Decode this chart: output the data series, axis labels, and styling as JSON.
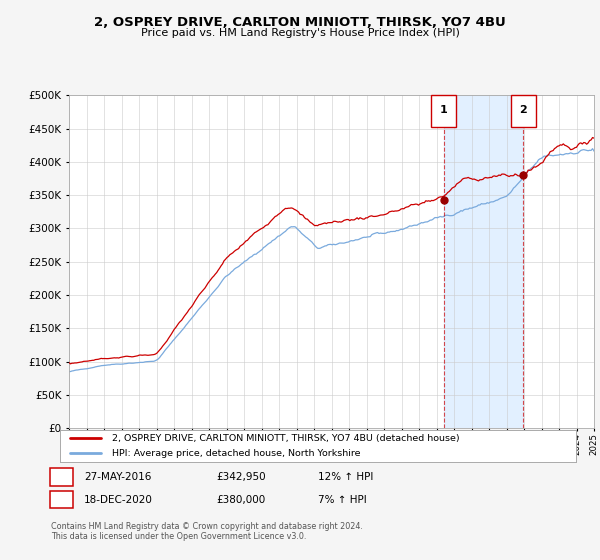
{
  "title": "2, OSPREY DRIVE, CARLTON MINIOTT, THIRSK, YO7 4BU",
  "subtitle": "Price paid vs. HM Land Registry's House Price Index (HPI)",
  "legend_line1": "2, OSPREY DRIVE, CARLTON MINIOTT, THIRSK, YO7 4BU (detached house)",
  "legend_line2": "HPI: Average price, detached house, North Yorkshire",
  "annotation1_label": "1",
  "annotation1_date": "27-MAY-2016",
  "annotation1_price": "£342,950",
  "annotation1_hpi": "12% ↑ HPI",
  "annotation2_label": "2",
  "annotation2_date": "18-DEC-2020",
  "annotation2_price": "£380,000",
  "annotation2_hpi": "7% ↑ HPI",
  "footnote": "Contains HM Land Registry data © Crown copyright and database right 2024.\nThis data is licensed under the Open Government Licence v3.0.",
  "hpi_color": "#7aaadd",
  "price_color": "#cc0000",
  "marker_color": "#990000",
  "shade_color": "#ddeeff",
  "annotation_box_color": "#cc0000",
  "grid_color": "#cccccc",
  "bg_color": "#f5f5f5",
  "plot_bg_color": "#ffffff",
  "ylim": [
    0,
    500000
  ],
  "yticks": [
    0,
    50000,
    100000,
    150000,
    200000,
    250000,
    300000,
    350000,
    400000,
    450000,
    500000
  ],
  "sale1_year": 2016.41,
  "sale1_price": 342950,
  "sale2_year": 2020.96,
  "sale2_price": 380000,
  "xstart": 1995,
  "xend": 2025
}
